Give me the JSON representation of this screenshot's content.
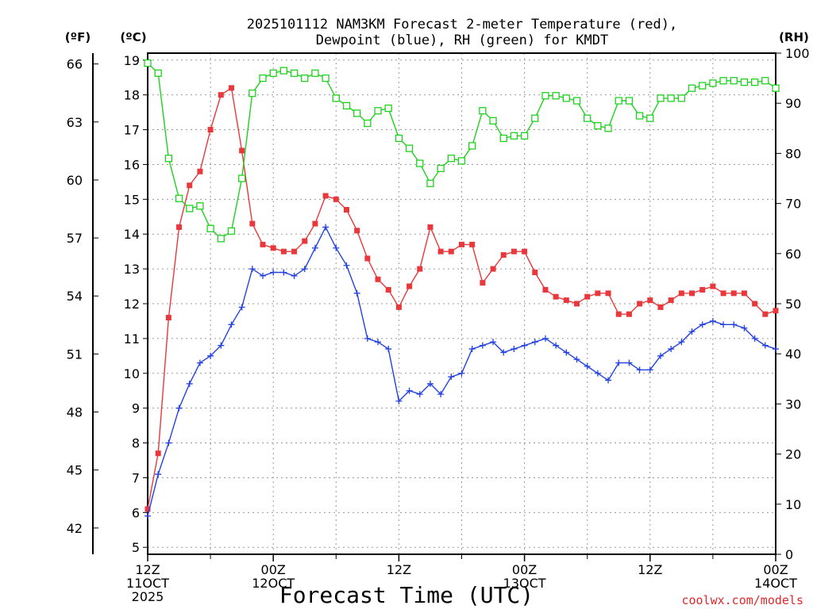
{
  "chart_data": {
    "type": "line",
    "title_lines": [
      "2025101112 NAM3KM Forecast 2-meter Temperature (red),",
      "Dewpoint (blue), RH (green) for KMDT"
    ],
    "xlabel": "Forecast Time (UTC)",
    "credit": "coolwx.com/models",
    "units": {
      "fahrenheit": "(ºF)",
      "celsius": "(ºC)",
      "rh": "(RH)"
    },
    "x_hours_range": [
      0,
      60
    ],
    "celsius_range": [
      4.8,
      19.2
    ],
    "rh_range": [
      0,
      100
    ],
    "x_ticks": [
      {
        "hour": 0,
        "label1": "12Z",
        "label2": "11OCT",
        "label3": "2025"
      },
      {
        "hour": 12,
        "label1": "00Z",
        "label2": "12OCT",
        "label3": ""
      },
      {
        "hour": 24,
        "label1": "12Z",
        "label2": "",
        "label3": ""
      },
      {
        "hour": 36,
        "label1": "00Z",
        "label2": "13OCT",
        "label3": ""
      },
      {
        "hour": 48,
        "label1": "12Z",
        "label2": "",
        "label3": ""
      },
      {
        "hour": 60,
        "label1": "00Z",
        "label2": "14OCT",
        "label3": ""
      }
    ],
    "celsius_ticks": [
      "5",
      "6",
      "7",
      "8",
      "9",
      "10",
      "11",
      "12",
      "13",
      "14",
      "15",
      "16",
      "17",
      "18",
      "19"
    ],
    "fahrenheit_ticks": [
      "42",
      "45",
      "48",
      "51",
      "54",
      "57",
      "60",
      "63",
      "66"
    ],
    "rh_ticks": [
      "0",
      "10",
      "20",
      "30",
      "40",
      "50",
      "60",
      "70",
      "80",
      "90",
      "100"
    ],
    "series": [
      {
        "name": "Temperature",
        "unit": "C",
        "color": "#e8383c",
        "marker": "filled-square",
        "x": [
          0,
          1,
          2,
          3,
          4,
          5,
          6,
          7,
          8,
          9,
          10,
          11,
          12,
          13,
          14,
          15,
          16,
          17,
          18,
          19,
          20,
          21,
          22,
          23,
          24,
          25,
          26,
          27,
          28,
          29,
          30,
          31,
          32,
          33,
          34,
          35,
          36,
          37,
          38,
          39,
          40,
          41,
          42,
          43,
          44,
          45,
          46,
          47,
          48,
          49,
          50,
          51,
          52,
          53,
          54,
          55,
          56,
          57,
          58,
          59,
          60
        ],
        "values": [
          6.1,
          7.7,
          11.6,
          14.2,
          15.4,
          15.8,
          17.0,
          18.0,
          18.2,
          16.4,
          14.3,
          13.7,
          13.6,
          13.5,
          13.5,
          13.8,
          14.3,
          15.1,
          15.0,
          14.7,
          14.1,
          13.3,
          12.7,
          12.4,
          11.9,
          12.5,
          13.0,
          14.2,
          13.5,
          13.5,
          13.7,
          13.7,
          12.6,
          13.0,
          13.4,
          13.5,
          13.5,
          12.9,
          12.4,
          12.2,
          12.1,
          12.0,
          12.2,
          12.3,
          12.3,
          11.7,
          11.7,
          12.0,
          12.1,
          11.9,
          12.1,
          12.3,
          12.3,
          12.4,
          12.5,
          12.3,
          12.3,
          12.3,
          12.0,
          11.7,
          11.8
        ]
      },
      {
        "name": "Dewpoint",
        "unit": "C",
        "color": "#2342e0",
        "marker": "plus",
        "x": [
          0,
          1,
          2,
          3,
          4,
          5,
          6,
          7,
          8,
          9,
          10,
          11,
          12,
          13,
          14,
          15,
          16,
          17,
          18,
          19,
          20,
          21,
          22,
          23,
          24,
          25,
          26,
          27,
          28,
          29,
          30,
          31,
          32,
          33,
          34,
          35,
          36,
          37,
          38,
          39,
          40,
          41,
          42,
          43,
          44,
          45,
          46,
          47,
          48,
          49,
          50,
          51,
          52,
          53,
          54,
          55,
          56,
          57,
          58,
          59,
          60
        ],
        "values": [
          5.9,
          7.1,
          8.0,
          9.0,
          9.7,
          10.3,
          10.5,
          10.8,
          11.4,
          11.9,
          13.0,
          12.8,
          12.9,
          12.9,
          12.8,
          13.0,
          13.6,
          14.2,
          13.6,
          13.1,
          12.3,
          11.0,
          10.9,
          10.7,
          9.2,
          9.5,
          9.4,
          9.7,
          9.4,
          9.9,
          10.0,
          10.7,
          10.8,
          10.9,
          10.6,
          10.7,
          10.8,
          10.9,
          11.0,
          10.8,
          10.6,
          10.4,
          10.2,
          10.0,
          9.8,
          10.3,
          10.3,
          10.1,
          10.1,
          10.5,
          10.7,
          10.9,
          11.2,
          11.4,
          11.5,
          11.4,
          11.4,
          11.3,
          11.0,
          10.8,
          10.7
        ]
      },
      {
        "name": "RH",
        "unit": "%",
        "color": "#1ed21e",
        "marker": "open-square",
        "x": [
          0,
          1,
          2,
          3,
          4,
          5,
          6,
          7,
          8,
          9,
          10,
          11,
          12,
          13,
          14,
          15,
          16,
          17,
          18,
          19,
          20,
          21,
          22,
          23,
          24,
          25,
          26,
          27,
          28,
          29,
          30,
          31,
          32,
          33,
          34,
          35,
          36,
          37,
          38,
          39,
          40,
          41,
          42,
          43,
          44,
          45,
          46,
          47,
          48,
          49,
          50,
          51,
          52,
          53,
          54,
          55,
          56,
          57,
          58,
          59,
          60
        ],
        "values": [
          98,
          96,
          79,
          71,
          69,
          69.5,
          65,
          63,
          64.5,
          75,
          92,
          95,
          96,
          96.5,
          96,
          95,
          96,
          95,
          91,
          89.5,
          88,
          86,
          88.5,
          89,
          83,
          81,
          78,
          74,
          77,
          79,
          78.5,
          81.5,
          88.5,
          86.5,
          83,
          83.5,
          83.5,
          87,
          91.5,
          91.5,
          91,
          90.5,
          87,
          85.5,
          85,
          90.5,
          90.5,
          87.5,
          87,
          91,
          91,
          91,
          93,
          93.5,
          94,
          94.5,
          94.5,
          94.2,
          94.2,
          94.5,
          93
        ]
      }
    ]
  }
}
